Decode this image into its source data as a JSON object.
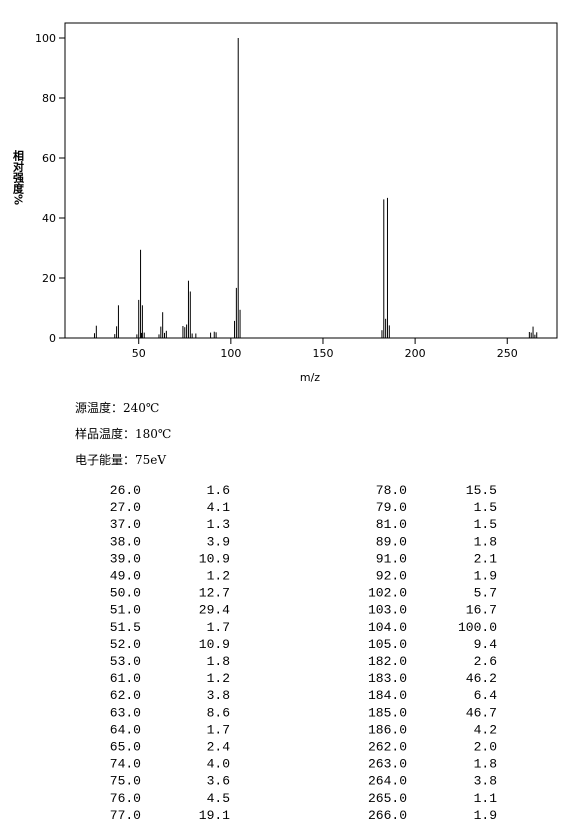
{
  "chart_data": {
    "type": "bar",
    "xlabel": "m/z",
    "ylabel": "相对强度%",
    "x": [
      26,
      27,
      37,
      38,
      39,
      49,
      50,
      51,
      51.5,
      52,
      53,
      61,
      62,
      63,
      64,
      65,
      74,
      75,
      76,
      77,
      78,
      79,
      81,
      89,
      91,
      92,
      102,
      103,
      104,
      105,
      182,
      183,
      184,
      185,
      186,
      262,
      263,
      264,
      265,
      266
    ],
    "values": [
      1.6,
      4.1,
      1.3,
      3.9,
      10.9,
      1.2,
      12.7,
      29.4,
      1.7,
      10.9,
      1.8,
      1.2,
      3.8,
      8.6,
      1.7,
      2.4,
      4.0,
      3.6,
      4.5,
      19.1,
      15.5,
      1.5,
      1.5,
      1.8,
      2.1,
      1.9,
      5.7,
      16.7,
      100.0,
      9.4,
      2.6,
      46.2,
      6.4,
      46.7,
      4.2,
      2.0,
      1.8,
      3.8,
      1.1,
      1.9
    ],
    "color": "#000000",
    "xlim": [
      10,
      277
    ],
    "xticks": [
      50,
      100,
      150,
      200,
      250
    ],
    "ylim": [
      0,
      105
    ],
    "yticks": [
      0,
      20,
      40,
      60,
      80,
      100
    ]
  },
  "info": [
    "源温度：240℃",
    "样品温度：180℃",
    "电子能量：75eV"
  ],
  "table": {
    "rows": [
      [
        "26.0",
        "1.6",
        "78.0",
        "15.5"
      ],
      [
        "27.0",
        "4.1",
        "79.0",
        "1.5"
      ],
      [
        "37.0",
        "1.3",
        "81.0",
        "1.5"
      ],
      [
        "38.0",
        "3.9",
        "89.0",
        "1.8"
      ],
      [
        "39.0",
        "10.9",
        "91.0",
        "2.1"
      ],
      [
        "49.0",
        "1.2",
        "92.0",
        "1.9"
      ],
      [
        "50.0",
        "12.7",
        "102.0",
        "5.7"
      ],
      [
        "51.0",
        "29.4",
        "103.0",
        "16.7"
      ],
      [
        "51.5",
        "1.7",
        "104.0",
        "100.0"
      ],
      [
        "52.0",
        "10.9",
        "105.0",
        "9.4"
      ],
      [
        "53.0",
        "1.8",
        "182.0",
        "2.6"
      ],
      [
        "61.0",
        "1.2",
        "183.0",
        "46.2"
      ],
      [
        "62.0",
        "3.8",
        "184.0",
        "6.4"
      ],
      [
        "63.0",
        "8.6",
        "185.0",
        "46.7"
      ],
      [
        "64.0",
        "1.7",
        "186.0",
        "4.2"
      ],
      [
        "65.0",
        "2.4",
        "262.0",
        "2.0"
      ],
      [
        "74.0",
        "4.0",
        "263.0",
        "1.8"
      ],
      [
        "75.0",
        "3.6",
        "264.0",
        "3.8"
      ],
      [
        "76.0",
        "4.5",
        "265.0",
        "1.1"
      ],
      [
        "77.0",
        "19.1",
        "266.0",
        "1.9"
      ]
    ]
  }
}
